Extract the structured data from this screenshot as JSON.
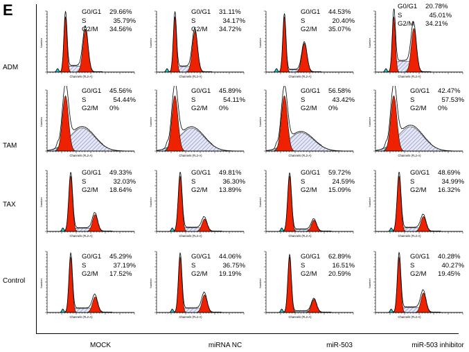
{
  "figure_letter": "E",
  "chart_data": {
    "type": "histogram",
    "title": "",
    "xlabel": "Channels (FL2-A)",
    "ylabel": "Number",
    "phase_labels": [
      "G0/G1",
      "S",
      "G2/M"
    ],
    "rows": [
      "ADM",
      "TAM",
      "TAX",
      "Control"
    ],
    "columns": [
      "MOCK",
      "miRNA NC",
      "miR-503",
      "miR-503 inhibitor"
    ],
    "panels": [
      [
        {
          "g0g1": "29.66%",
          "s": "35.79%",
          "g2m": "34.56%"
        },
        {
          "g0g1": "31.11%",
          "s": "34.17%",
          "g2m": "34.72%"
        },
        {
          "g0g1": "44.53%",
          "s": "20.40%",
          "g2m": "35.07%"
        },
        {
          "g0g1": "20.78%",
          "s": "45.01%",
          "g2m": "34.21%"
        }
      ],
      [
        {
          "g0g1": "45.56%",
          "s": "54.44%",
          "g2m": "0%"
        },
        {
          "g0g1": "45.89%",
          "s": "54.11%",
          "g2m": "0%"
        },
        {
          "g0g1": "56.58%",
          "s": "43.42%",
          "g2m": "0%"
        },
        {
          "g0g1": "42.47%",
          "s": "57.53%",
          "g2m": "0%"
        }
      ],
      [
        {
          "g0g1": "49.33%",
          "s": "32.03%",
          "g2m": "18.64%"
        },
        {
          "g0g1": "49.81%",
          "s": "36.30%",
          "g2m": "13.89%"
        },
        {
          "g0g1": "59.72%",
          "s": "24.59%",
          "g2m": "15.09%"
        },
        {
          "g0g1": "48.69%",
          "s": "34.99%",
          "g2m": "16.32%"
        }
      ],
      [
        {
          "g0g1": "45.29%",
          "s": "37.19%",
          "g2m": "17.52%"
        },
        {
          "g0g1": "44.06%",
          "s": "36.75%",
          "g2m": "19.19%"
        },
        {
          "g0g1": "62.89%",
          "s": "16.51%",
          "g2m": "20.59%"
        },
        {
          "g0g1": "40.28%",
          "s": "40.27%",
          "g2m": "19.45%"
        }
      ]
    ],
    "colors": {
      "g1_g2_fill": "#ee2200",
      "s_fill": "#c8cde8",
      "debris": "#22cccc",
      "outline": "#000000"
    }
  }
}
